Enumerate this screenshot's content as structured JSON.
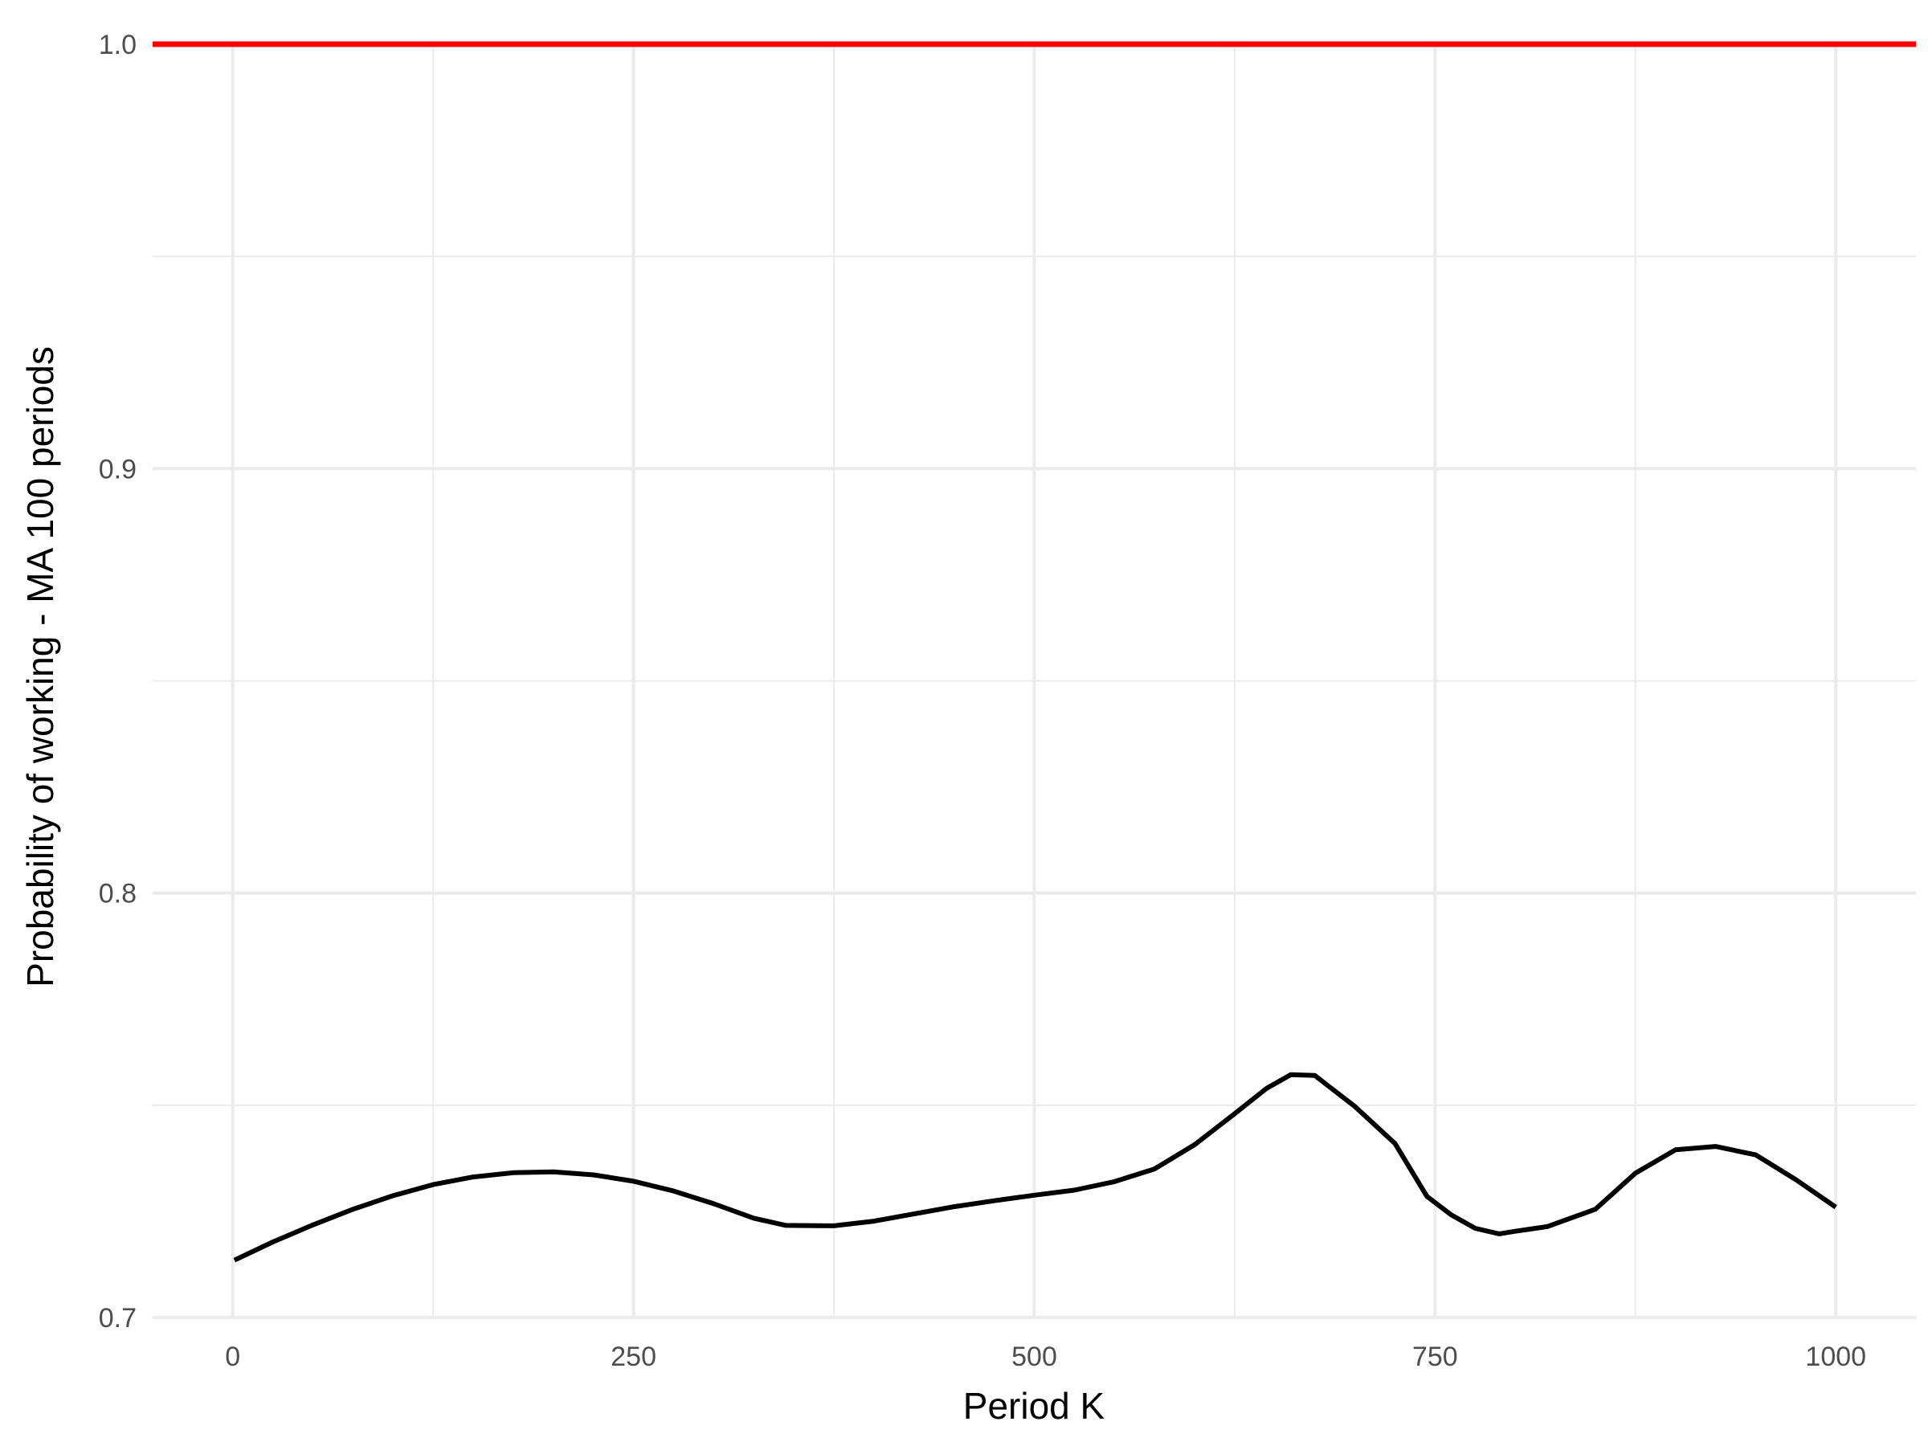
{
  "chart_data": {
    "type": "line",
    "title": "",
    "xlabel": "Period K",
    "ylabel": "Probability of working - MA 100 periods",
    "xlim": [
      -50,
      1050
    ],
    "ylim": [
      0.7,
      1.0
    ],
    "x_ticks": [
      0,
      250,
      500,
      750,
      1000
    ],
    "x_tick_labels": [
      "0",
      "250",
      "500",
      "750",
      "1000"
    ],
    "y_ticks": [
      0.7,
      0.8,
      0.9,
      1.0
    ],
    "y_tick_labels": [
      "0.7",
      "0.8",
      "0.9",
      "1.0"
    ],
    "grid": true,
    "legend": "none",
    "reference_line": {
      "y": 1.0,
      "color": "#ff0000"
    },
    "series": [
      {
        "color": "#000000",
        "x": [
          1,
          25,
          50,
          75,
          100,
          125,
          150,
          175,
          200,
          225,
          250,
          275,
          300,
          325,
          345,
          375,
          400,
          425,
          450,
          475,
          500,
          525,
          550,
          575,
          600,
          625,
          645,
          660,
          675,
          700,
          725,
          745,
          760,
          775,
          790,
          800,
          820,
          850,
          875,
          900,
          925,
          950,
          975,
          1000
        ],
        "y": [
          0.7135,
          0.7178,
          0.7218,
          0.7255,
          0.7287,
          0.7313,
          0.7331,
          0.7341,
          0.7343,
          0.7336,
          0.7321,
          0.7298,
          0.7268,
          0.7234,
          0.7217,
          0.7216,
          0.7227,
          0.7244,
          0.7261,
          0.7275,
          0.7288,
          0.73,
          0.732,
          0.735,
          0.7407,
          0.748,
          0.754,
          0.7572,
          0.757,
          0.7497,
          0.741,
          0.7285,
          0.7242,
          0.721,
          0.7197,
          0.7203,
          0.7214,
          0.7255,
          0.734,
          0.7395,
          0.7403,
          0.7383,
          0.7325,
          0.726
        ]
      }
    ]
  }
}
